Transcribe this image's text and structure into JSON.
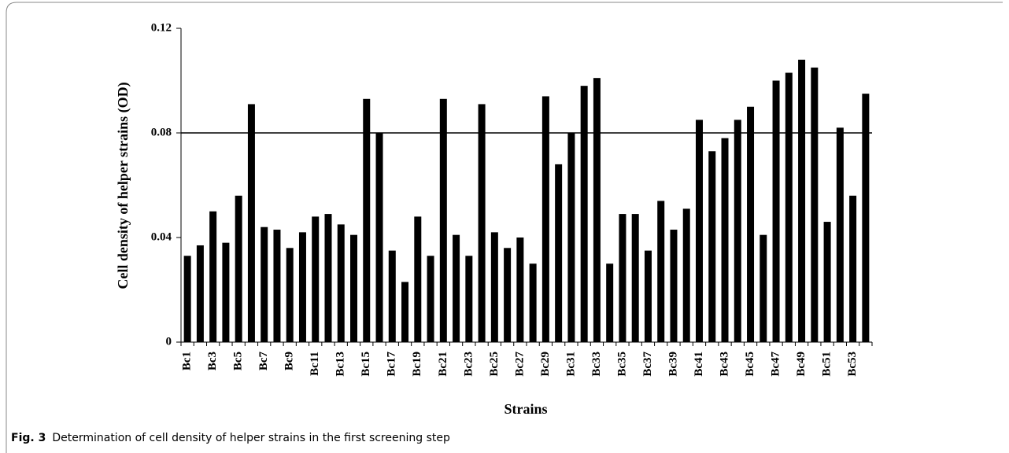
{
  "chart_data": {
    "type": "bar",
    "x_label": "Strains",
    "y_label": "Cell density of helper strains (OD)",
    "categories": [
      "Bc1",
      null,
      "Bc3",
      null,
      "Bc5",
      null,
      "Bc7",
      null,
      "Bc9",
      null,
      "Bc11",
      null,
      "Bc13",
      null,
      "Bc15",
      null,
      "Bc17",
      null,
      "Bc19",
      null,
      "Bc21",
      null,
      "Bc23",
      null,
      "Bc25",
      null,
      "Bc27",
      null,
      "Bc29",
      null,
      "Bc31",
      null,
      "Bc33",
      null,
      "Bc35",
      null,
      "Bc37",
      null,
      "Bc39",
      null,
      "Bc41",
      null,
      "Bc43",
      null,
      "Bc45",
      null,
      "Bc47",
      null,
      "Bc49",
      null,
      "Bc51",
      null,
      "Bc53",
      null
    ],
    "values": [
      0.033,
      0.037,
      0.05,
      0.038,
      0.056,
      0.091,
      0.044,
      0.043,
      0.036,
      0.042,
      0.048,
      0.049,
      0.045,
      0.041,
      0.093,
      0.08,
      0.035,
      0.023,
      0.048,
      0.033,
      0.093,
      0.041,
      0.033,
      0.091,
      0.042,
      0.036,
      0.04,
      0.03,
      0.094,
      0.068,
      0.08,
      0.098,
      0.101,
      0.03,
      0.049,
      0.049,
      0.035,
      0.054,
      0.043,
      0.051,
      0.085,
      0.073,
      0.078,
      0.085,
      0.09,
      0.041,
      0.1,
      0.103,
      0.108,
      0.105,
      0.046,
      0.082,
      0.056,
      0.095
    ],
    "color": "#000000",
    "ylim": [
      0,
      0.12
    ],
    "yticks": [
      0,
      0.04,
      0.08,
      0.12
    ],
    "reference_line": 0.08
  },
  "caption": {
    "label": "Fig. 3",
    "text": "Determination of cell density of helper strains in the first screening step"
  }
}
